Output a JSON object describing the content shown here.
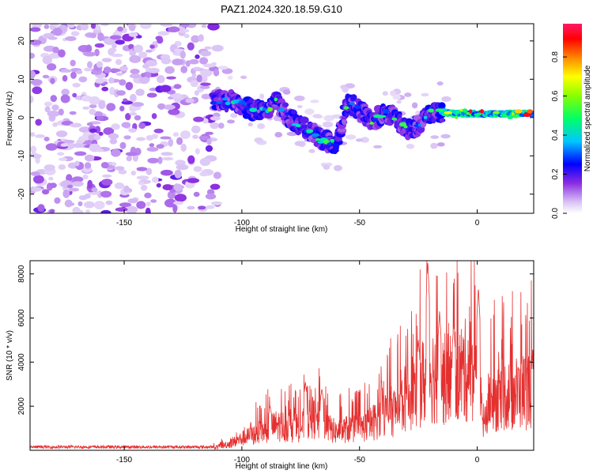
{
  "title": "PAZ1.2024.320.18.59.G10",
  "colors": {
    "signal": "#e53030",
    "spec_low": "#8a2be2",
    "frame": "#000000"
  },
  "chart_data": [
    {
      "type": "heatmap",
      "xlabel": "Height of straight line (km)",
      "ylabel": "Frequency (Hz)",
      "xlim": [
        -190,
        24
      ],
      "ylim": [
        -25,
        24.5
      ],
      "xticks": [
        -150,
        -100,
        -50,
        0
      ],
      "yticks": [
        -20,
        -10,
        0,
        10,
        20
      ],
      "colorbar": {
        "label": "Normalized spectral amplitude",
        "range": [
          0,
          0.97
        ],
        "ticks": [
          0.0,
          0.2,
          0.4,
          0.6,
          0.8
        ]
      },
      "ridge": {
        "x": [
          -112,
          -105,
          -100,
          -95,
          -90,
          -85,
          -80,
          -75,
          -70,
          -65,
          -60,
          -55,
          -50,
          -45,
          -40,
          -35,
          -30,
          -25,
          -20,
          -15,
          -10,
          -5,
          0,
          5,
          10,
          15,
          20,
          24
        ],
        "y": [
          4.5,
          4.5,
          3,
          2,
          2,
          4,
          0,
          -2,
          -4,
          -6,
          -7,
          4,
          2,
          -1,
          1,
          0,
          -3,
          -2,
          1,
          1.5,
          1,
          1,
          1,
          1,
          1,
          1,
          1,
          1
        ]
      }
    },
    {
      "type": "line",
      "xlabel": "Height of straight line (km)",
      "ylabel": "SNR (10 * v/v)",
      "xlim": [
        -190,
        24
      ],
      "ylim": [
        0,
        8600
      ],
      "xticks": [
        -150,
        -100,
        -50,
        0
      ],
      "yticks": [
        2000,
        4000,
        6000,
        8000
      ],
      "envelope": {
        "x": [
          -190,
          -150,
          -112,
          -105,
          -100,
          -90,
          -85,
          -80,
          -75,
          -70,
          -65,
          -60,
          -55,
          -50,
          -45,
          -40,
          -35,
          -30,
          -25,
          -22,
          -20,
          -18,
          -15,
          -10,
          -5,
          -2,
          0,
          3,
          5,
          10,
          15,
          20,
          24
        ],
        "y": [
          100,
          100,
          150,
          400,
          700,
          1200,
          1500,
          1400,
          1400,
          2000,
          1500,
          1100,
          1300,
          1300,
          1600,
          2200,
          2400,
          3200,
          4000,
          4200,
          4800,
          4500,
          4200,
          4500,
          4800,
          5000,
          3800,
          1500,
          3000,
          3300,
          3400,
          3600,
          3700
        ]
      },
      "peaks": [
        {
          "x": -21,
          "y": 8600
        },
        {
          "x": -16,
          "y": 6300
        },
        {
          "x": 0.5,
          "y": 7400
        },
        {
          "x": -73,
          "y": 3100
        },
        {
          "x": -66,
          "y": 2800
        },
        {
          "x": -88,
          "y": 2000
        },
        {
          "x": -10,
          "y": 5700
        },
        {
          "x": -25,
          "y": 5000
        }
      ]
    }
  ]
}
